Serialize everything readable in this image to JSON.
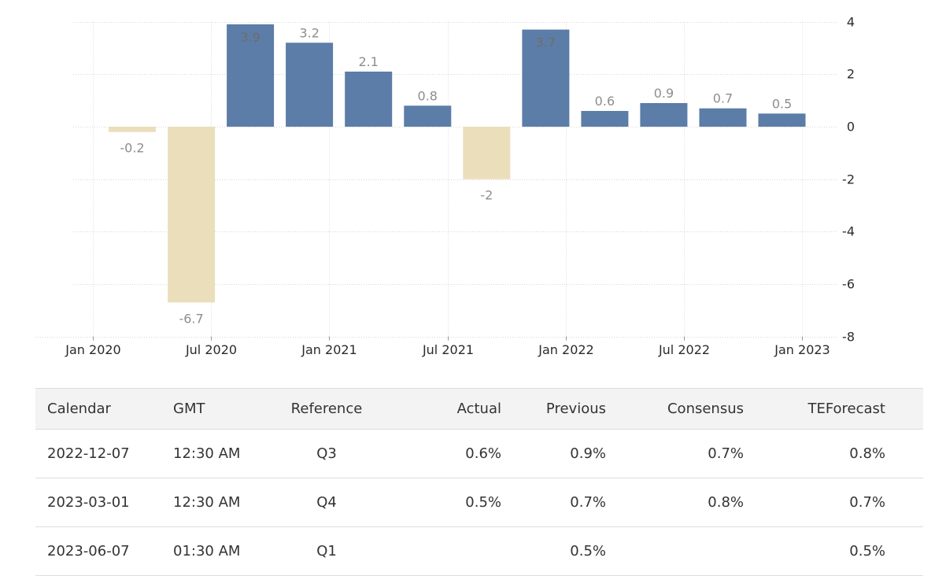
{
  "chart_data": {
    "type": "bar",
    "title": "",
    "x": [
      "Q1 2020",
      "Q2 2020",
      "Q3 2020",
      "Q4 2020",
      "Q1 2021",
      "Q2 2021",
      "Q3 2021",
      "Q4 2021",
      "Q1 2022",
      "Q2 2022",
      "Q3 2022",
      "Q4 2022"
    ],
    "values": [
      -0.2,
      -6.7,
      3.9,
      3.2,
      2.1,
      0.8,
      -2,
      3.7,
      0.6,
      0.9,
      0.7,
      0.5
    ],
    "bar_labels": [
      "-0.2",
      "-6.7",
      "3.9",
      "3.2",
      "2.1",
      "0.8",
      "-2",
      "3.7",
      "0.6",
      "0.9",
      "0.7",
      "0.5"
    ],
    "labels_inside": [
      false,
      false,
      true,
      false,
      false,
      false,
      false,
      true,
      false,
      false,
      false,
      false
    ],
    "x_tick_labels": [
      "Jan 2020",
      "Jul 2020",
      "Jan 2021",
      "Jul 2021",
      "Jan 2022",
      "Jul 2022",
      "Jan 2023"
    ],
    "y_ticks": [
      4,
      2,
      0,
      -2,
      -4,
      -6,
      -8
    ],
    "ylim": [
      -8,
      4.9
    ],
    "xlabel": "",
    "ylabel": "",
    "grid": "dotted",
    "legend": "none",
    "colors": {
      "positive_bar": "#5b7da7",
      "negative_bar": "#ebdebb",
      "grid_line": "#d8d8d8",
      "axis_text": "#2b2b2b",
      "value_label": "#8d8d8d",
      "value_label_inside": "#6d6d6d"
    }
  },
  "table": {
    "columns": [
      "Calendar",
      "GMT",
      "Reference",
      "Actual",
      "Previous",
      "Consensus",
      "TEForecast"
    ],
    "rows": [
      [
        "2022-12-07",
        "12:30 AM",
        "Q3",
        "0.6%",
        "0.9%",
        "0.7%",
        "0.8%"
      ],
      [
        "2023-03-01",
        "12:30 AM",
        "Q4",
        "0.5%",
        "0.7%",
        "0.8%",
        "0.7%"
      ],
      [
        "2023-06-07",
        "01:30 AM",
        "Q1",
        "",
        "0.5%",
        "",
        "0.5%"
      ]
    ]
  }
}
